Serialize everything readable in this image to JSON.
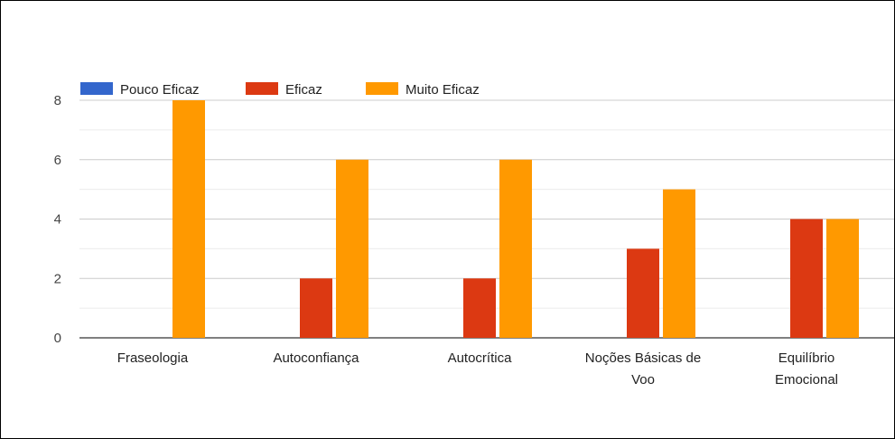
{
  "chart_data": {
    "type": "bar",
    "title": "",
    "xlabel": "",
    "ylabel": "",
    "ylim": [
      0,
      8.5
    ],
    "y_ticks": [
      0,
      2,
      4,
      6,
      8
    ],
    "categories": [
      [
        "Fraseologia"
      ],
      [
        "Autoconfiança"
      ],
      [
        "Autocrítica"
      ],
      [
        "Noções Básicas de",
        "Voo"
      ],
      [
        "Equilíbrio",
        "Emocional"
      ]
    ],
    "series": [
      {
        "name": "Pouco Eficaz",
        "color": "#3366cc",
        "values": [
          0,
          0,
          0,
          0,
          0
        ]
      },
      {
        "name": "Eficaz",
        "color": "#dc3912",
        "values": [
          0,
          2,
          2,
          3,
          4
        ]
      },
      {
        "name": "Muito Eficaz",
        "color": "#ff9900",
        "values": [
          8,
          6,
          6,
          5,
          4
        ]
      }
    ],
    "legend": "top-left",
    "grid": true
  }
}
